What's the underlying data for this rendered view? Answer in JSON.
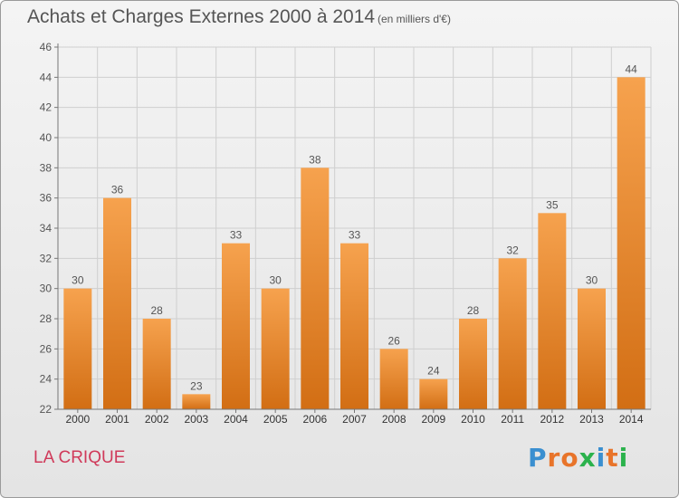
{
  "title": "Achats et Charges Externes 2000 à 2014",
  "subtitle": "(en milliers d'€)",
  "commune": "LA CRIQUE",
  "logo": {
    "letters": [
      "P",
      "r",
      "o",
      "x",
      "i",
      "t",
      "i"
    ],
    "colors": [
      "#3a8fd0",
      "#e8742a",
      "#e8742a",
      "#2bb24c",
      "#3a8fd0",
      "#e8742a",
      "#2bb24c"
    ]
  },
  "colors": {
    "bar_top": "#f6a24e",
    "bar_bottom": "#d26e14",
    "grid": "#cfcfcf",
    "text": "#555555"
  },
  "chart_data": {
    "type": "bar",
    "categories": [
      "2000",
      "2001",
      "2002",
      "2003",
      "2004",
      "2005",
      "2006",
      "2007",
      "2008",
      "2009",
      "2010",
      "2011",
      "2012",
      "2013",
      "2014"
    ],
    "values": [
      30,
      36,
      28,
      23,
      33,
      30,
      38,
      33,
      26,
      24,
      28,
      32,
      35,
      30,
      44
    ],
    "ylim": [
      22,
      46
    ],
    "yticks": [
      22,
      24,
      26,
      28,
      30,
      32,
      34,
      36,
      38,
      40,
      42,
      44,
      46
    ],
    "grid": true,
    "title": "Achats et Charges Externes 2000 à 2014",
    "xlabel": "",
    "ylabel": ""
  }
}
